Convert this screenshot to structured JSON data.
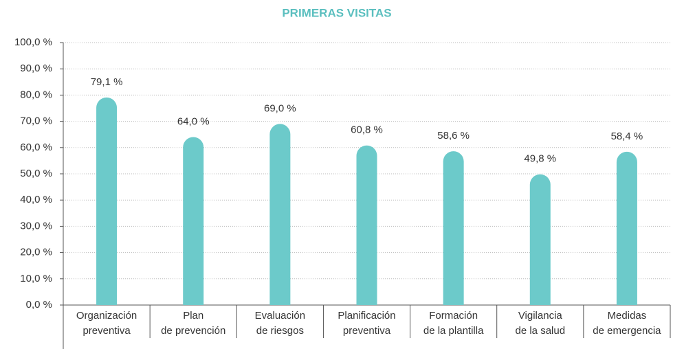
{
  "chart_data": {
    "type": "bar",
    "title": "PRIMERAS VISITAS",
    "categories": [
      [
        "Organización",
        "preventiva"
      ],
      [
        "Plan",
        "de prevención"
      ],
      [
        "Evaluación",
        "de riesgos"
      ],
      [
        "Planificación",
        "preventiva"
      ],
      [
        "Formación",
        "de la plantilla"
      ],
      [
        "Vigilancia",
        "de la salud"
      ],
      [
        "Medidas",
        "de emergencia"
      ]
    ],
    "values": [
      79.1,
      64.0,
      69.0,
      60.8,
      58.6,
      49.8,
      58.4
    ],
    "value_labels": [
      "79,1 %",
      "64,0 %",
      "69,0 %",
      "60,8 %",
      "58,6 %",
      "49,8 %",
      "58,4 %"
    ],
    "color": "#6ccaca",
    "ylim": [
      0,
      100
    ],
    "yticks": [
      {
        "value": 0,
        "label": "0,0 %"
      },
      {
        "value": 10,
        "label": "10,0 %"
      },
      {
        "value": 20,
        "label": "20,0 %"
      },
      {
        "value": 30,
        "label": "30,0 %"
      },
      {
        "value": 40,
        "label": "40,0 %"
      },
      {
        "value": 50,
        "label": "50,0 %"
      },
      {
        "value": 60,
        "label": "60,0 %"
      },
      {
        "value": 70,
        "label": "70,0 %"
      },
      {
        "value": 80,
        "label": "80,0 %"
      },
      {
        "value": 90,
        "label": "90,0 %"
      },
      {
        "value": 100,
        "label": "100,0 %"
      }
    ],
    "grid": true
  }
}
